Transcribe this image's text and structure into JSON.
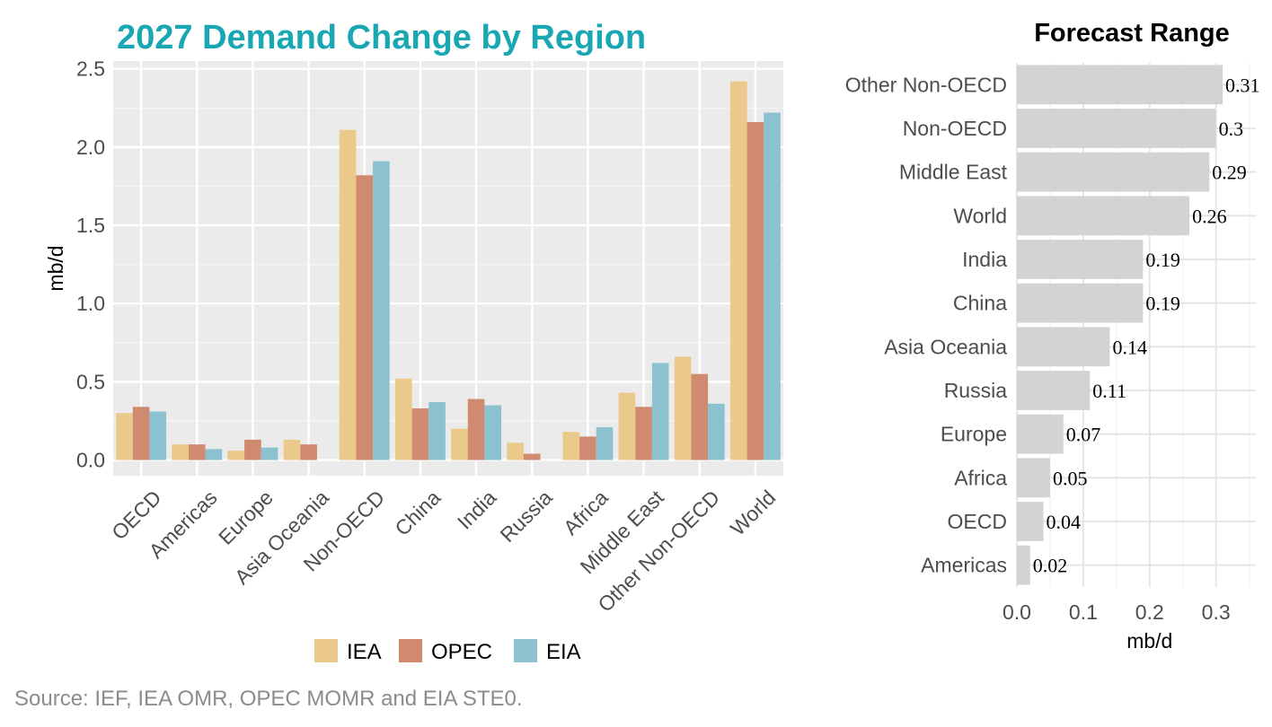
{
  "source": "Source: IEF, IEA OMR, OPEC MOMR and EIA STE0.",
  "chart_data": [
    {
      "type": "bar",
      "title": "2027 Demand Change by Region",
      "xlabel": "",
      "ylabel": "mb/d",
      "ylim": [
        -0.1,
        2.55
      ],
      "yticks": [
        "0.0",
        "0.5",
        "1.0",
        "1.5",
        "2.0",
        "2.5"
      ],
      "grid": true,
      "legend": "bottom",
      "categories": [
        "OECD",
        "Americas",
        "Europe",
        "Asia Oceania",
        "Non-OECD",
        "China",
        "India",
        "Russia",
        "Africa",
        "Middle East",
        "Other Non-OECD",
        "World"
      ],
      "series": [
        {
          "name": "IEA",
          "color": "#ebc98b",
          "values": [
            0.3,
            0.1,
            0.06,
            0.13,
            2.11,
            0.52,
            0.2,
            0.11,
            0.18,
            0.43,
            0.66,
            2.42
          ]
        },
        {
          "name": "OPEC",
          "color": "#d08a70",
          "values": [
            0.34,
            0.1,
            0.13,
            0.1,
            1.82,
            0.33,
            0.39,
            0.04,
            0.15,
            0.34,
            0.55,
            2.16
          ]
        },
        {
          "name": "EIA",
          "color": "#8cc2d0",
          "values": [
            0.31,
            0.07,
            0.08,
            0.0,
            1.91,
            0.37,
            0.35,
            0.0,
            0.21,
            0.62,
            0.36,
            2.22
          ]
        }
      ]
    },
    {
      "type": "bar",
      "orientation": "horizontal",
      "title": "Forecast Range",
      "xlabel": "mb/d",
      "ylabel": "",
      "xlim": [
        0,
        0.36
      ],
      "xticks": [
        "0.0",
        "0.1",
        "0.2",
        "0.3"
      ],
      "grid": true,
      "bar_color": "#d3d3d3",
      "categories": [
        "Other Non-OECD",
        "Non-OECD",
        "Middle East",
        "World",
        "India",
        "China",
        "Asia Oceania",
        "Russia",
        "Europe",
        "Africa",
        "OECD",
        "Americas"
      ],
      "values": [
        0.31,
        0.3,
        0.29,
        0.26,
        0.19,
        0.19,
        0.14,
        0.11,
        0.07,
        0.05,
        0.04,
        0.02
      ],
      "value_labels": [
        "0.31",
        "0.3",
        "0.29",
        "0.26",
        "0.19",
        "0.19",
        "0.14",
        "0.11",
        "0.07",
        "0.05",
        "0.04",
        "0.02"
      ]
    }
  ]
}
